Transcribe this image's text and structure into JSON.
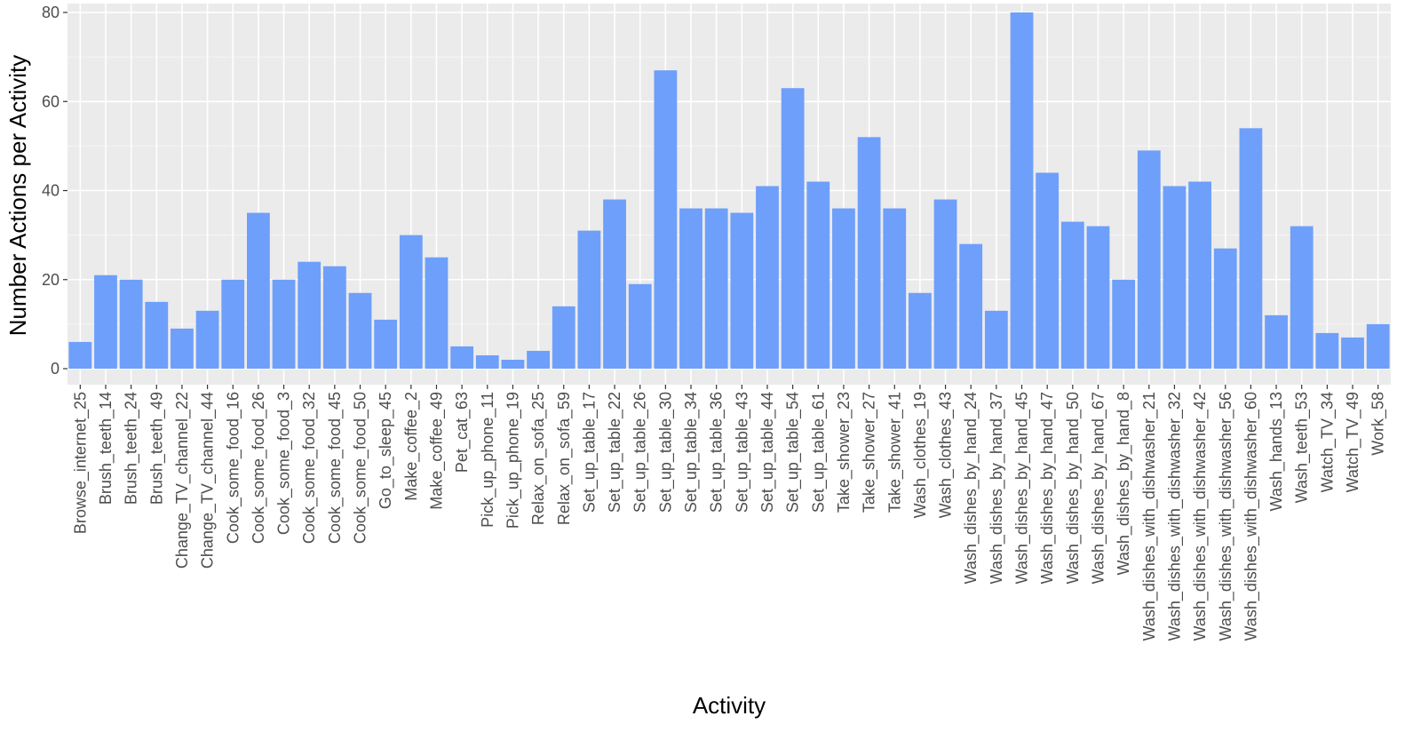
{
  "chart_data": {
    "type": "bar",
    "title": "",
    "xlabel": "Activity",
    "ylabel": "Number Actions per Activity",
    "ylim": [
      0,
      82
    ],
    "yticks": [
      0,
      20,
      40,
      60,
      80
    ],
    "grid": true,
    "colors": {
      "bar": "#6e9ffa",
      "panel": "#ebebeb",
      "grid_major": "#ffffff"
    },
    "categories": [
      "Browse_internet_25",
      "Brush_teeth_14",
      "Brush_teeth_24",
      "Brush_teeth_49",
      "Change_TV_channel_22",
      "Change_TV_channel_44",
      "Cook_some_food_16",
      "Cook_some_food_26",
      "Cook_some_food_3",
      "Cook_some_food_32",
      "Cook_some_food_45",
      "Cook_some_food_50",
      "Go_to_sleep_45",
      "Make_coffee_2",
      "Make_coffee_49",
      "Pet_cat_63",
      "Pick_up_phone_11",
      "Pick_up_phone_19",
      "Relax_on_sofa_25",
      "Relax_on_sofa_59",
      "Set_up_table_17",
      "Set_up_table_22",
      "Set_up_table_26",
      "Set_up_table_30",
      "Set_up_table_34",
      "Set_up_table_36",
      "Set_up_table_43",
      "Set_up_table_44",
      "Set_up_table_54",
      "Set_up_table_61",
      "Take_shower_23",
      "Take_shower_27",
      "Take_shower_41",
      "Wash_clothes_19",
      "Wash_clothes_43",
      "Wash_dishes_by_hand_24",
      "Wash_dishes_by_hand_37",
      "Wash_dishes_by_hand_45",
      "Wash_dishes_by_hand_47",
      "Wash_dishes_by_hand_50",
      "Wash_dishes_by_hand_67",
      "Wash_dishes_by_hand_8",
      "Wash_dishes_with_dishwasher_21",
      "Wash_dishes_with_dishwasher_32",
      "Wash_dishes_with_dishwasher_42",
      "Wash_dishes_with_dishwasher_56",
      "Wash_dishes_with_dishwasher_60",
      "Wash_hands_13",
      "Wash_teeth_53",
      "Watch_TV_34",
      "Watch_TV_49",
      "Work_58"
    ],
    "values": [
      6,
      21,
      20,
      15,
      9,
      13,
      20,
      35,
      20,
      24,
      23,
      17,
      11,
      30,
      25,
      5,
      3,
      2,
      4,
      14,
      31,
      38,
      19,
      67,
      36,
      36,
      35,
      41,
      63,
      42,
      36,
      52,
      36,
      17,
      38,
      28,
      13,
      80,
      44,
      33,
      32,
      20,
      49,
      41,
      42,
      27,
      54,
      12,
      32,
      8,
      7,
      10
    ]
  }
}
